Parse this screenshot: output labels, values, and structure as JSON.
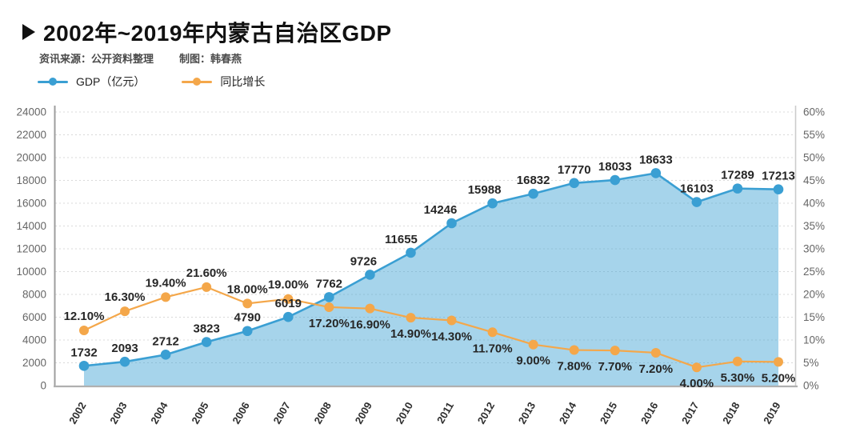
{
  "header": {
    "marker_icon": "right-pointing-triangle",
    "title": "2002年~2019年内蒙古自治区GDP",
    "source": "资讯来源：公开资料整理",
    "author": "制图：韩春燕"
  },
  "legend": {
    "items": [
      {
        "label": "GDP（亿元）",
        "color": "#3a9fd3"
      },
      {
        "label": "同比增长",
        "color": "#f4a74a"
      }
    ]
  },
  "chart_data": {
    "type": "line",
    "title": "2002年~2019年内蒙古自治区GDP",
    "grid": "horizontal-dotted",
    "legend_position": "top-left",
    "categories": [
      "2002",
      "2003",
      "2004",
      "2005",
      "2006",
      "2007",
      "2008",
      "2009",
      "2010",
      "2011",
      "2012",
      "2013",
      "2014",
      "2015",
      "2016",
      "2017",
      "2018",
      "2019"
    ],
    "series": [
      {
        "name": "GDP（亿元）",
        "style": "area-line",
        "axis": "left",
        "color": "#3a9fd3",
        "area_opacity": 0.45,
        "values": [
          1732,
          2093,
          2712,
          3823,
          4790,
          6019,
          7762,
          9726,
          11655,
          14246,
          15988,
          16832,
          17770,
          18033,
          18633,
          16103,
          17289,
          17213
        ],
        "labels": [
          "1732",
          "2093",
          "2712",
          "3823",
          "4790",
          "6019",
          "7762",
          "9726",
          "11655",
          "14246",
          "15988",
          "16832",
          "17770",
          "18033",
          "18633",
          "16103",
          "17289",
          "17213"
        ]
      },
      {
        "name": "同比增长",
        "style": "line",
        "axis": "right",
        "color": "#f4a74a",
        "values": [
          12.1,
          16.3,
          19.4,
          21.6,
          18.0,
          19.0,
          17.2,
          16.9,
          14.9,
          14.3,
          11.7,
          9.0,
          7.8,
          7.7,
          7.2,
          4.0,
          5.3,
          5.2
        ],
        "labels": [
          "12.10%",
          "16.30%",
          "19.40%",
          "21.60%",
          "18.00%",
          "19.00%",
          "17.20%",
          "16.90%",
          "14.90%",
          "14.30%",
          "11.70%",
          "9.00%",
          "7.80%",
          "7.70%",
          "7.20%",
          "4.00%",
          "5.30%",
          "5.20%"
        ]
      }
    ],
    "left_axis": {
      "min": 0,
      "max": 24000,
      "step": 2000,
      "tick_labels": [
        "0",
        "2000",
        "4000",
        "6000",
        "8000",
        "10000",
        "12000",
        "14000",
        "16000",
        "18000",
        "20000",
        "22000",
        "24000"
      ]
    },
    "right_axis": {
      "min": 0,
      "max": 60,
      "step": 5,
      "suffix": "%",
      "tick_labels": [
        "0%",
        "5%",
        "10%",
        "15%",
        "20%",
        "25%",
        "30%",
        "35%",
        "40%",
        "45%",
        "50%",
        "55%",
        "60%"
      ]
    },
    "colors": {
      "gridline": "#d9d9d9",
      "axis_left": "#9e9e9e",
      "axis_right": "#cbcbcb",
      "axis_bottom": "#b0b0b0",
      "data_label": "#262626",
      "tick_label": "#666666"
    }
  }
}
